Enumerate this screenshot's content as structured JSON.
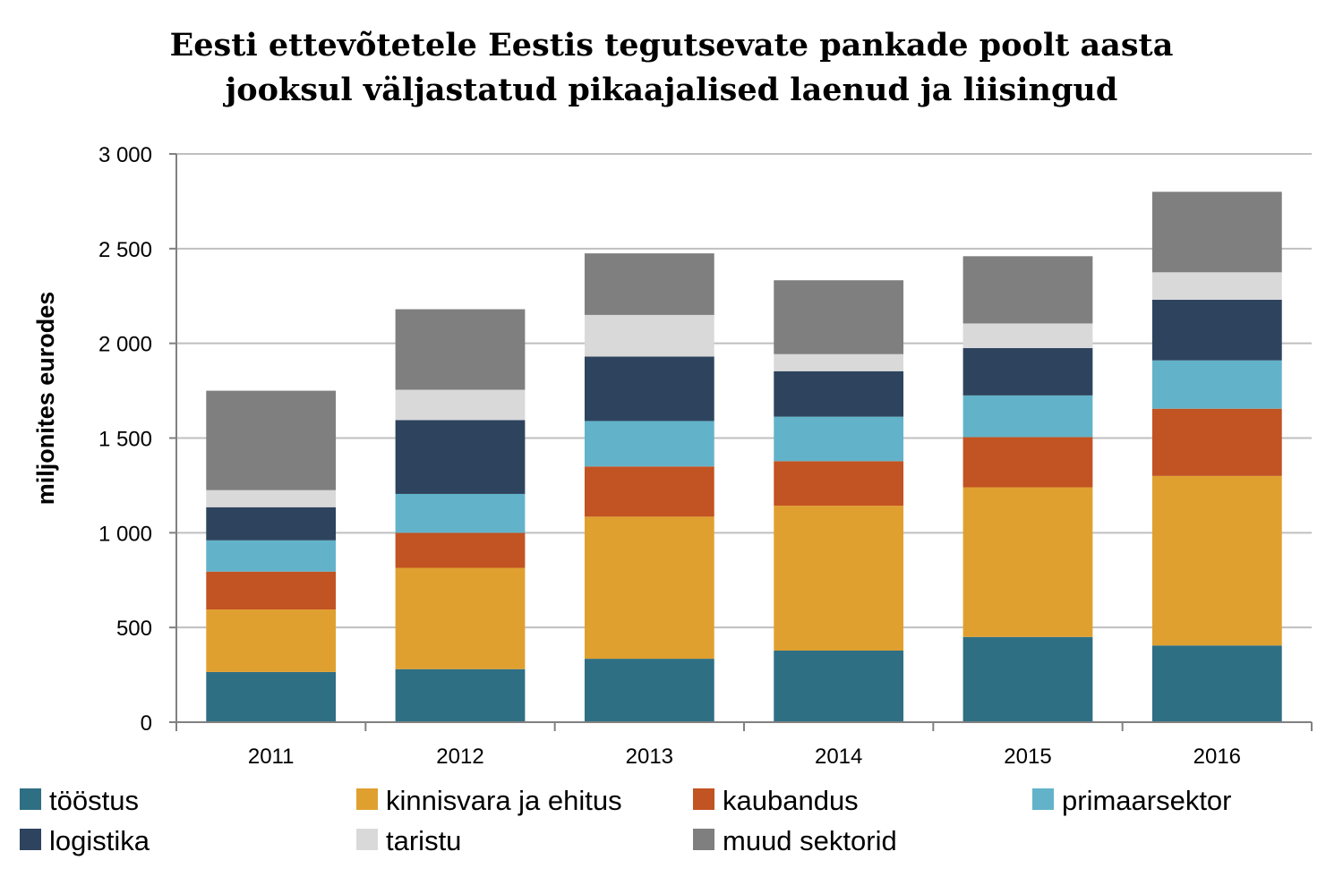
{
  "chart_data": {
    "type": "bar",
    "stacked": true,
    "title_lines": [
      "Eesti ettevõtetele Eestis tegutsevate pankade poolt aasta",
      "jooksul väljastatud pikaajalised laenud ja liisingud"
    ],
    "ylabel": "miljonites eurodes",
    "xlabel": "",
    "categories": [
      "2011",
      "2012",
      "2013",
      "2014",
      "2015",
      "2016"
    ],
    "ylim": [
      0,
      3000
    ],
    "yticks": [
      0,
      500,
      1000,
      1500,
      2000,
      2500,
      3000
    ],
    "ytick_labels": [
      "0",
      "500",
      "1 000",
      "1 500",
      "2 000",
      "2 500",
      "3 000"
    ],
    "grid": "horizontal",
    "legend_position": "bottom",
    "series": [
      {
        "name": "tööstus",
        "color": "#2e6f84",
        "values": [
          265,
          280,
          335,
          378,
          450,
          405
        ]
      },
      {
        "name": "kinnisvara ja ehitus",
        "color": "#e0a030",
        "values": [
          330,
          535,
          750,
          765,
          790,
          895
        ]
      },
      {
        "name": "kaubandus",
        "color": "#c25322",
        "values": [
          200,
          185,
          265,
          235,
          265,
          355
        ]
      },
      {
        "name": "primaarsektor",
        "color": "#62b3c9",
        "values": [
          165,
          205,
          240,
          235,
          220,
          255
        ]
      },
      {
        "name": "logistika",
        "color": "#2e445e",
        "values": [
          175,
          390,
          340,
          240,
          250,
          320
        ]
      },
      {
        "name": "taristu",
        "color": "#d9d9d9",
        "values": [
          90,
          160,
          220,
          90,
          130,
          145
        ]
      },
      {
        "name": "muud sektorid",
        "color": "#7f7f7f",
        "values": [
          525,
          425,
          325,
          390,
          355,
          425
        ]
      }
    ]
  }
}
